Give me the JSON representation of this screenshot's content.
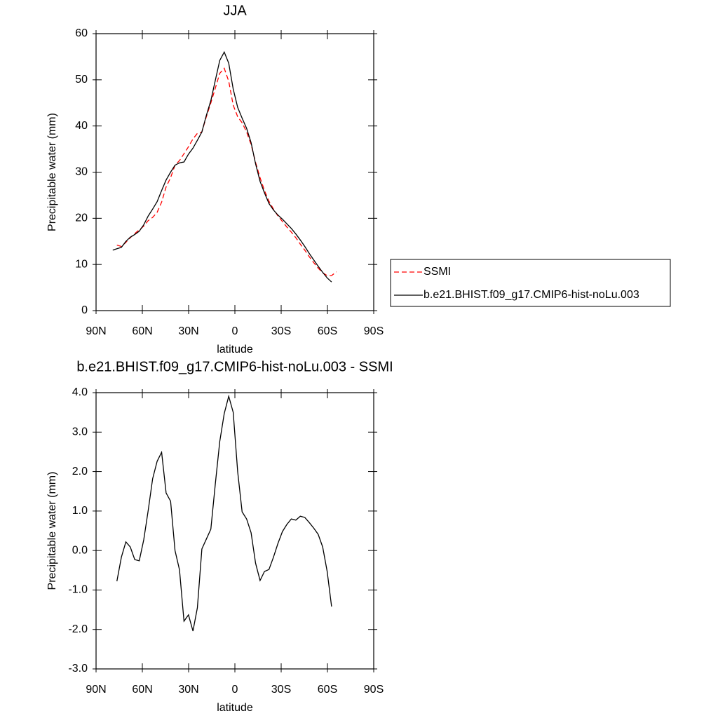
{
  "chart_data": [
    {
      "type": "line",
      "title": "JJA",
      "xlabel": "latitude",
      "ylabel": "Precipitable water (mm)",
      "x": [
        79.2,
        76.5,
        73.6,
        70.7,
        67.8,
        64.9,
        62.0,
        59.1,
        56.2,
        53.3,
        50.4,
        47.5,
        44.6,
        41.7,
        38.8,
        35.9,
        33.0,
        30.1,
        27.2,
        24.3,
        21.4,
        18.5,
        15.6,
        12.7,
        9.8,
        6.9,
        4.0,
        1.1,
        -1.8,
        -4.7,
        -7.6,
        -10.5,
        -13.4,
        -16.3,
        -19.2,
        -22.1,
        -25.0,
        -27.9,
        -30.8,
        -33.7,
        -36.6,
        -39.5,
        -42.4,
        -45.3,
        -48.2,
        -51.1,
        -54.0,
        -56.9,
        -59.8,
        -62.7,
        -65.8
      ],
      "series": [
        {
          "name": "SSMI",
          "color": "#ff0000",
          "dashed": true,
          "values": [
            null,
            14.2,
            13.9,
            14.8,
            15.8,
            16.7,
            17.5,
            18.3,
            19.5,
            20.2,
            21.3,
            23.5,
            26.8,
            28.8,
            31.5,
            32.5,
            34.0,
            35.5,
            37.2,
            38.4,
            38.7,
            42.0,
            45.0,
            48.2,
            51.4,
            52.5,
            49.7,
            44.5,
            42.0,
            40.7,
            38.7,
            36.0,
            32.1,
            28.8,
            26.0,
            23.7,
            22.0,
            20.5,
            19.3,
            18.1,
            17.0,
            15.8,
            14.4,
            13.1,
            11.7,
            10.4,
            9.2,
            8.2,
            7.6,
            7.6,
            8.4
          ]
        },
        {
          "name": "b.e21.BHIST.f09_g17.CMIP6-hist-noLu.003",
          "color": "#000000",
          "dashed": false,
          "values": [
            13.1,
            13.4,
            13.7,
            15.0,
            15.9,
            16.5,
            17.2,
            18.6,
            20.5,
            22.0,
            23.6,
            26.0,
            28.3,
            30.0,
            31.5,
            32.0,
            32.2,
            33.9,
            35.2,
            36.9,
            38.7,
            42.3,
            45.5,
            49.9,
            54.2,
            56.0,
            53.6,
            48.0,
            44.0,
            41.7,
            39.5,
            36.4,
            31.8,
            28.0,
            25.5,
            23.2,
            21.8,
            20.7,
            19.8,
            18.8,
            17.8,
            16.6,
            15.3,
            13.9,
            12.4,
            11.0,
            9.6,
            8.3,
            7.1,
            6.2,
            null
          ]
        }
      ],
      "xlim": [
        90,
        -90
      ],
      "xticks": [
        {
          "value": 90,
          "label": "90N"
        },
        {
          "value": 60,
          "label": "60N"
        },
        {
          "value": 30,
          "label": "30N"
        },
        0,
        {
          "value": -30,
          "label": "30S"
        },
        {
          "value": -60,
          "label": "60S"
        },
        {
          "value": -90,
          "label": "90S"
        }
      ],
      "ylim": [
        0,
        60
      ],
      "yticks": [
        0,
        10,
        20,
        30,
        40,
        50,
        60
      ],
      "legend": "right"
    },
    {
      "type": "line",
      "title": "b.e21.BHIST.f09_g17.CMIP6-hist-noLu.003 - SSMI",
      "xlabel": "latitude",
      "ylabel": "Precipitable water (mm)",
      "x": [
        76.5,
        73.6,
        70.7,
        67.8,
        64.9,
        62.0,
        59.1,
        56.2,
        53.3,
        50.4,
        47.5,
        44.6,
        41.7,
        38.8,
        35.9,
        33.0,
        30.1,
        27.2,
        24.3,
        21.4,
        18.5,
        15.6,
        12.7,
        9.8,
        6.9,
        4.0,
        1.1,
        -1.8,
        -4.7,
        -7.6,
        -10.5,
        -13.4,
        -16.3,
        -19.2,
        -22.1,
        -25.0,
        -27.9,
        -30.8,
        -33.7,
        -36.6,
        -39.5,
        -42.4,
        -45.3,
        -48.2,
        -51.1,
        -54.0,
        -56.9,
        -59.8,
        -62.7
      ],
      "color": "#000000",
      "values": [
        -0.78,
        -0.17,
        0.22,
        0.09,
        -0.23,
        -0.26,
        0.27,
        1.02,
        1.82,
        2.26,
        2.49,
        1.46,
        1.25,
        0.0,
        -0.49,
        -1.79,
        -1.63,
        -2.04,
        -1.45,
        0.04,
        0.29,
        0.54,
        1.69,
        2.76,
        3.47,
        3.91,
        3.5,
        1.99,
        0.98,
        0.8,
        0.45,
        -0.32,
        -0.76,
        -0.53,
        -0.48,
        -0.17,
        0.18,
        0.48,
        0.66,
        0.8,
        0.77,
        0.87,
        0.84,
        0.71,
        0.57,
        0.41,
        0.09,
        -0.53,
        -1.42
      ],
      "xlim": [
        90,
        -90
      ],
      "xticks": [
        {
          "value": 90,
          "label": "90N"
        },
        {
          "value": 60,
          "label": "60N"
        },
        {
          "value": 30,
          "label": "30N"
        },
        0,
        {
          "value": -30,
          "label": "30S"
        },
        {
          "value": -60,
          "label": "60S"
        },
        {
          "value": -90,
          "label": "90S"
        }
      ],
      "ylim": [
        -3,
        4
      ],
      "yticks": [
        {
          "value": 4,
          "label": "4.0"
        },
        {
          "value": 3,
          "label": "3.0"
        },
        {
          "value": 2,
          "label": "2.0"
        },
        {
          "value": 1,
          "label": "1.0"
        },
        {
          "value": 0,
          "label": "0.0"
        },
        {
          "value": -1,
          "label": "-1.0"
        },
        {
          "value": -2,
          "label": "-2.0"
        },
        {
          "value": -3,
          "label": "-3.0"
        }
      ]
    }
  ]
}
